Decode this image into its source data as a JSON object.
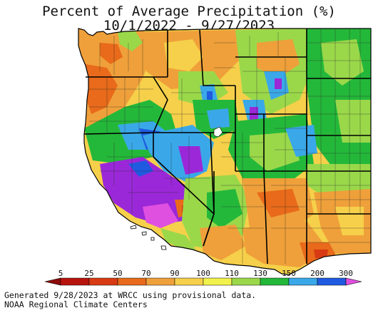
{
  "title": {
    "line1": "Percent of Average Precipitation (%)",
    "line2": "10/1/2022 - 9/27/2023"
  },
  "legend": {
    "stops": [
      {
        "label": "5",
        "color": "#b8140e"
      },
      {
        "label": "25",
        "color": "#d83a14"
      },
      {
        "label": "50",
        "color": "#e86a1a"
      },
      {
        "label": "70",
        "color": "#efa03a"
      },
      {
        "label": "90",
        "color": "#f6d04a"
      },
      {
        "label": "100",
        "color": "#f2f24c"
      },
      {
        "label": "110",
        "color": "#9ad84a"
      },
      {
        "label": "130",
        "color": "#24b83a"
      },
      {
        "label": "150",
        "color": "#3aa8e8"
      },
      {
        "label": "200",
        "color": "#1f5ae0"
      },
      {
        "label": "300",
        "color": "#9a28d8"
      }
    ],
    "end_low_color": "#8c0a0a",
    "end_high_color": "#e050e0"
  },
  "footer": {
    "line1": "Generated 9/28/2023 at WRCC using provisional data.",
    "line2": "NOAA Regional Climate Centers"
  },
  "colors": {
    "ocean": "#ffffff",
    "mexico": "#ffffff",
    "state_border": "#000000",
    "county_border": "#2a2a2a"
  }
}
